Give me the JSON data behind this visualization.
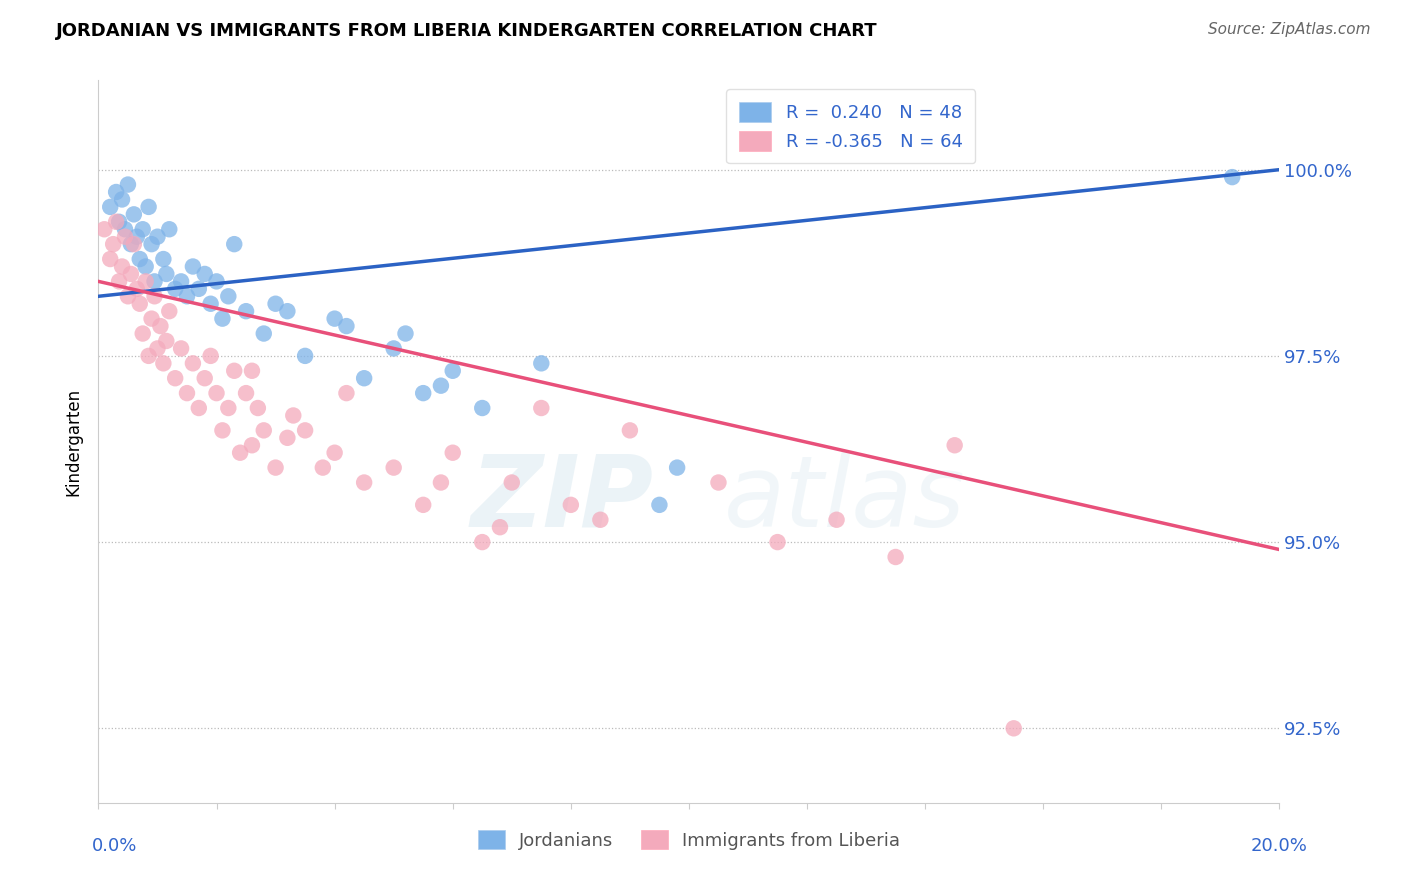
{
  "title": "JORDANIAN VS IMMIGRANTS FROM LIBERIA KINDERGARTEN CORRELATION CHART",
  "source": "Source: ZipAtlas.com",
  "ylabel": "Kindergarten",
  "yticks": [
    92.5,
    95.0,
    97.5,
    100.0
  ],
  "ytick_labels": [
    "92.5%",
    "95.0%",
    "97.5%",
    "100.0%"
  ],
  "xmin": 0.0,
  "xmax": 20.0,
  "ymin": 91.5,
  "ymax": 101.2,
  "blue_R": 0.24,
  "blue_N": 48,
  "pink_R": -0.365,
  "pink_N": 64,
  "blue_color": "#7EB3E8",
  "pink_color": "#F4AABC",
  "blue_line_color": "#2B62C4",
  "pink_line_color": "#E8507A",
  "legend_label_blue": "Jordanians",
  "legend_label_pink": "Immigrants from Liberia",
  "watermark_zip": "ZIP",
  "watermark_atlas": "atlas",
  "blue_scatter_x": [
    0.2,
    0.3,
    0.35,
    0.4,
    0.45,
    0.5,
    0.55,
    0.6,
    0.65,
    0.7,
    0.75,
    0.8,
    0.85,
    0.9,
    0.95,
    1.0,
    1.1,
    1.15,
    1.2,
    1.3,
    1.4,
    1.5,
    1.6,
    1.7,
    1.8,
    1.9,
    2.0,
    2.1,
    2.2,
    2.5,
    2.8,
    3.0,
    3.5,
    4.0,
    4.5,
    5.0,
    5.5,
    6.0,
    6.5,
    7.5,
    9.5,
    9.8,
    5.2,
    5.8,
    4.2,
    3.2,
    2.3,
    19.2
  ],
  "blue_scatter_y": [
    99.5,
    99.7,
    99.3,
    99.6,
    99.2,
    99.8,
    99.0,
    99.4,
    99.1,
    98.8,
    99.2,
    98.7,
    99.5,
    99.0,
    98.5,
    99.1,
    98.8,
    98.6,
    99.2,
    98.4,
    98.5,
    98.3,
    98.7,
    98.4,
    98.6,
    98.2,
    98.5,
    98.0,
    98.3,
    98.1,
    97.8,
    98.2,
    97.5,
    98.0,
    97.2,
    97.6,
    97.0,
    97.3,
    96.8,
    97.4,
    95.5,
    96.0,
    97.8,
    97.1,
    97.9,
    98.1,
    99.0,
    99.9
  ],
  "pink_scatter_x": [
    0.1,
    0.2,
    0.25,
    0.3,
    0.35,
    0.4,
    0.45,
    0.5,
    0.55,
    0.6,
    0.65,
    0.7,
    0.75,
    0.8,
    0.85,
    0.9,
    0.95,
    1.0,
    1.05,
    1.1,
    1.15,
    1.2,
    1.3,
    1.4,
    1.5,
    1.6,
    1.7,
    1.8,
    1.9,
    2.0,
    2.1,
    2.2,
    2.3,
    2.4,
    2.5,
    2.6,
    2.7,
    2.8,
    3.0,
    3.2,
    3.5,
    3.8,
    4.0,
    4.5,
    5.0,
    5.5,
    6.0,
    6.5,
    7.0,
    8.0,
    9.0,
    10.5,
    11.5,
    12.5,
    13.5,
    14.5,
    4.2,
    5.8,
    6.8,
    7.5,
    8.5,
    3.3,
    2.6,
    15.5
  ],
  "pink_scatter_y": [
    99.2,
    98.8,
    99.0,
    99.3,
    98.5,
    98.7,
    99.1,
    98.3,
    98.6,
    99.0,
    98.4,
    98.2,
    97.8,
    98.5,
    97.5,
    98.0,
    98.3,
    97.6,
    97.9,
    97.4,
    97.7,
    98.1,
    97.2,
    97.6,
    97.0,
    97.4,
    96.8,
    97.2,
    97.5,
    97.0,
    96.5,
    96.8,
    97.3,
    96.2,
    97.0,
    96.3,
    96.8,
    96.5,
    96.0,
    96.4,
    96.5,
    96.0,
    96.2,
    95.8,
    96.0,
    95.5,
    96.2,
    95.0,
    95.8,
    95.5,
    96.5,
    95.8,
    95.0,
    95.3,
    94.8,
    96.3,
    97.0,
    95.8,
    95.2,
    96.8,
    95.3,
    96.7,
    97.3,
    92.5
  ],
  "blue_line_x0": 0.0,
  "blue_line_x1": 20.0,
  "blue_line_y0": 98.3,
  "blue_line_y1": 100.0,
  "pink_line_x0": 0.0,
  "pink_line_x1": 20.0,
  "pink_line_y0": 98.5,
  "pink_line_y1": 94.9
}
